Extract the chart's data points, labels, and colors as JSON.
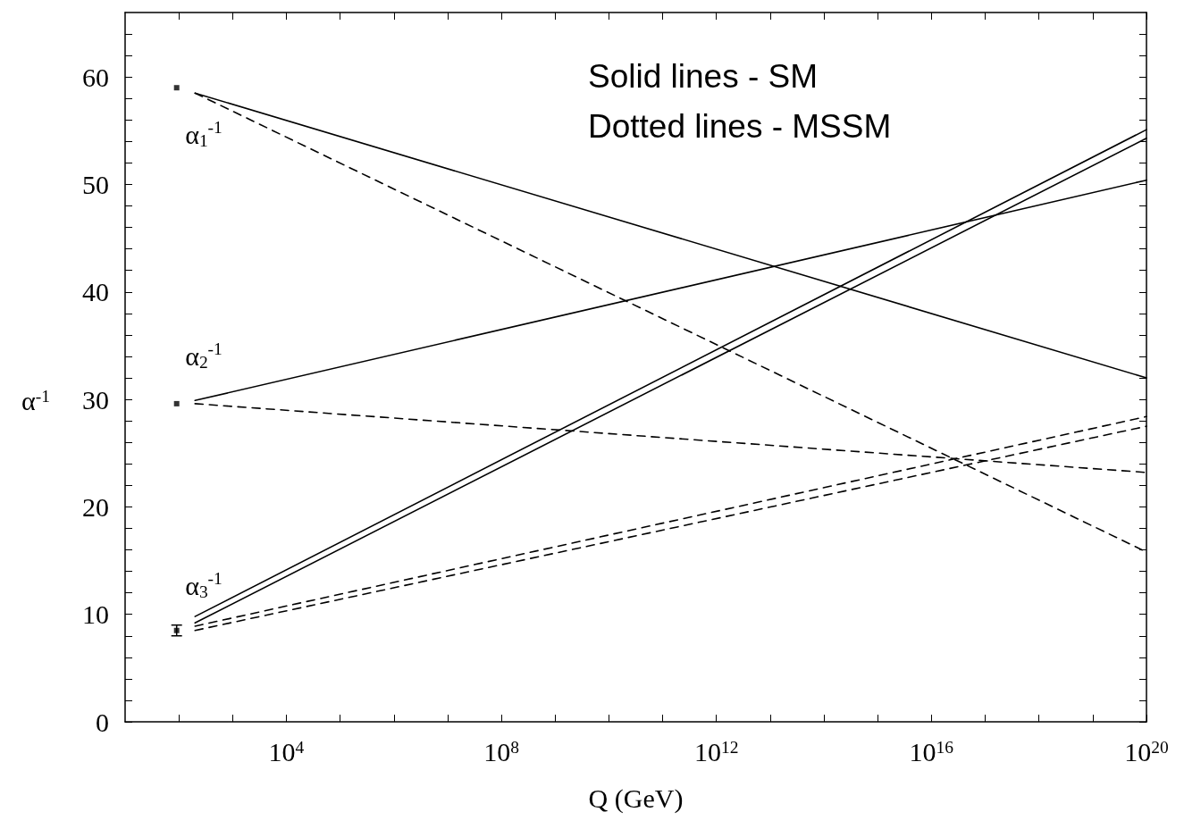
{
  "chart_data": {
    "type": "line",
    "xlabel": "Q (GeV)",
    "ylabel": "α$^{-1}$",
    "log": "x",
    "xlim": [
      10,
      1e+20
    ],
    "ylim": [
      0,
      66
    ],
    "xticks": [
      {
        "value": 100,
        "label": null
      },
      {
        "value": 1000,
        "label": null
      },
      {
        "value": 10000,
        "label": "10$^{4}$"
      },
      {
        "value": 100000,
        "label": null
      },
      {
        "value": 1000000,
        "label": null
      },
      {
        "value": 10000000,
        "label": null
      },
      {
        "value": 100000000,
        "label": "10$^{8}$"
      },
      {
        "value": 1000000000,
        "label": null
      },
      {
        "value": 10000000000,
        "label": null
      },
      {
        "value": 100000000000,
        "label": null
      },
      {
        "value": 1000000000000,
        "label": "10$^{12}$"
      },
      {
        "value": 10000000000000,
        "label": null
      },
      {
        "value": 100000000000000,
        "label": null
      },
      {
        "value": 1000000000000000,
        "label": null
      },
      {
        "value": 10000000000000000,
        "label": "10$^{16}$"
      },
      {
        "value": 100000000000000000,
        "label": null
      },
      {
        "value": 1000000000000000000,
        "label": null
      },
      {
        "value": 10000000000000000000,
        "label": null
      },
      {
        "value": 1e+20,
        "label": "10$^{20}$"
      }
    ],
    "yticks": [
      0,
      {
        "value": 2,
        "label": null
      },
      {
        "value": 4,
        "label": null
      },
      {
        "value": 6,
        "label": null
      },
      {
        "value": 8,
        "label": null
      },
      10,
      {
        "value": 12,
        "label": null
      },
      {
        "value": 14,
        "label": null
      },
      {
        "value": 16,
        "label": null
      },
      {
        "value": 18,
        "label": null
      },
      20,
      {
        "value": 22,
        "label": null
      },
      {
        "value": 24,
        "label": null
      },
      {
        "value": 26,
        "label": null
      },
      {
        "value": 28,
        "label": null
      },
      30,
      {
        "value": 32,
        "label": null
      },
      {
        "value": 34,
        "label": null
      },
      {
        "value": 36,
        "label": null
      },
      {
        "value": 38,
        "label": null
      },
      40,
      {
        "value": 42,
        "label": null
      },
      {
        "value": 44,
        "label": null
      },
      {
        "value": 46,
        "label": null
      },
      {
        "value": 48,
        "label": null
      },
      50,
      {
        "value": 52,
        "label": null
      },
      {
        "value": 54,
        "label": null
      },
      {
        "value": 56,
        "label": null
      },
      {
        "value": 58,
        "label": null
      },
      60,
      {
        "value": 62,
        "label": null
      },
      {
        "value": 64,
        "label": null
      }
    ],
    "marker": "none",
    "series": [
      {
        "color": "#000000",
        "line_style": "solid",
        "x": [
          200,
          1e+20
        ],
        "values": [
          58.5,
          32.0
        ]
      },
      {
        "color": "#000000",
        "line_style": "dashed",
        "x": [
          200,
          1e+20
        ],
        "values": [
          58.5,
          15.8
        ]
      },
      {
        "color": "#000000",
        "line_style": "solid",
        "x": [
          200,
          1e+20
        ],
        "values": [
          29.9,
          50.4
        ]
      },
      {
        "color": "#000000",
        "line_style": "dashed",
        "x": [
          200,
          1e+20
        ],
        "values": [
          29.6,
          23.2
        ]
      },
      {
        "color": "#000000",
        "line_style": "solid",
        "x": [
          200,
          1e+20
        ],
        "values": [
          9.8,
          55.1
        ]
      },
      {
        "color": "#000000",
        "line_style": "solid",
        "x": [
          200,
          1e+20
        ],
        "values": [
          9.2,
          54.3
        ]
      },
      {
        "color": "#000000",
        "line_style": "dashed",
        "x": [
          200,
          1e+20
        ],
        "values": [
          8.9,
          28.4
        ]
      },
      {
        "color": "#000000",
        "line_style": "dashed",
        "x": [
          200,
          1e+20
        ],
        "values": [
          8.5,
          27.5
        ]
      },
      {
        "type": "scatter",
        "color": "#000000",
        "marker": "square",
        "x": [
          91,
          91,
          91
        ],
        "values": [
          59.0,
          29.6,
          8.5
        ],
        "errors": [
          null,
          null,
          0.5
        ]
      }
    ],
    "annotations": [
      "α$_{1}$$^{-1}$",
      "α$_{2}$$^{-1}$",
      "α$_{3}$$^{-1}$",
      "Solid lines - SM",
      "Dotted lines - MSSM"
    ]
  }
}
